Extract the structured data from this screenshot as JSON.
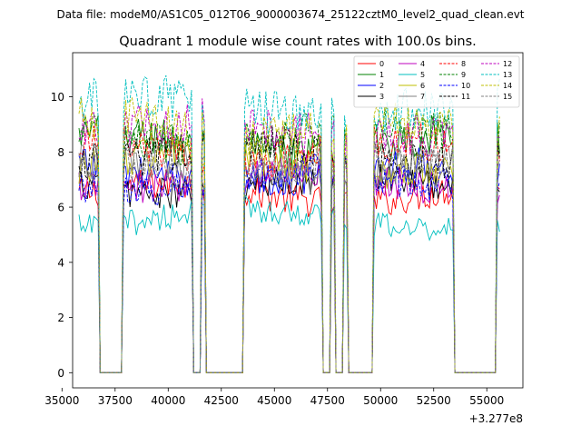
{
  "suptitle": "Data file: modeM0/AS1C05_012T06_9000003674_25122cztM0_level2_quad_clean.evt",
  "chart_data": {
    "type": "line",
    "title": "Quadrant 1 module wise count rates with 100.0s bins.",
    "xlabel": "",
    "ylabel": "",
    "x_offset_label": "+3.277e8",
    "xlim": [
      35500,
      56700
    ],
    "ylim": [
      -0.55,
      11.6
    ],
    "xticks": [
      35000,
      37500,
      40000,
      42500,
      45000,
      47500,
      50000,
      52500,
      55000
    ],
    "xtick_labels": [
      "35000",
      "37500",
      "40000",
      "42500",
      "45000",
      "47500",
      "50000",
      "52500",
      "55000"
    ],
    "yticks": [
      0,
      2,
      4,
      6,
      8,
      10
    ],
    "ytick_labels": [
      "0",
      "2",
      "4",
      "6",
      "8",
      "10"
    ],
    "bin_seconds": 100,
    "x_start": 35800,
    "x_end": 55600,
    "gap_intervals": [
      [
        36800,
        37800
      ],
      [
        41200,
        41500
      ],
      [
        41800,
        42500
      ],
      [
        42600,
        43500
      ],
      [
        47300,
        47600
      ],
      [
        47900,
        48200
      ],
      [
        48500,
        49400
      ],
      [
        49500,
        49600
      ],
      [
        53500,
        55400
      ]
    ],
    "legend_position": "top-right",
    "series": [
      {
        "name": "0",
        "mean": 6.5,
        "color": "#ff0000",
        "dashed": false
      },
      {
        "name": "1",
        "mean": 8.3,
        "color": "#008000",
        "dashed": false
      },
      {
        "name": "2",
        "mean": 7.2,
        "color": "#0000ff",
        "dashed": false
      },
      {
        "name": "3",
        "mean": 6.8,
        "color": "#000000",
        "dashed": false
      },
      {
        "name": "4",
        "mean": 7.0,
        "color": "#bf00bf",
        "dashed": false
      },
      {
        "name": "5",
        "mean": 5.6,
        "color": "#00bfbf",
        "dashed": false
      },
      {
        "name": "6",
        "mean": 7.6,
        "color": "#bfbf00",
        "dashed": false
      },
      {
        "name": "7",
        "mean": 7.4,
        "color": "#808080",
        "dashed": false
      },
      {
        "name": "8",
        "mean": 8.0,
        "color": "#ff0000",
        "dashed": true
      },
      {
        "name": "9",
        "mean": 8.6,
        "color": "#008000",
        "dashed": true
      },
      {
        "name": "10",
        "mean": 7.0,
        "color": "#0000ff",
        "dashed": true
      },
      {
        "name": "11",
        "mean": 8.0,
        "color": "#000000",
        "dashed": true
      },
      {
        "name": "12",
        "mean": 8.8,
        "color": "#bf00bf",
        "dashed": true
      },
      {
        "name": "13",
        "mean": 9.6,
        "color": "#00bfbf",
        "dashed": true
      },
      {
        "name": "14",
        "mean": 8.9,
        "color": "#bfbf00",
        "dashed": true
      },
      {
        "name": "15",
        "mean": 7.5,
        "color": "#808080",
        "dashed": true
      }
    ]
  }
}
